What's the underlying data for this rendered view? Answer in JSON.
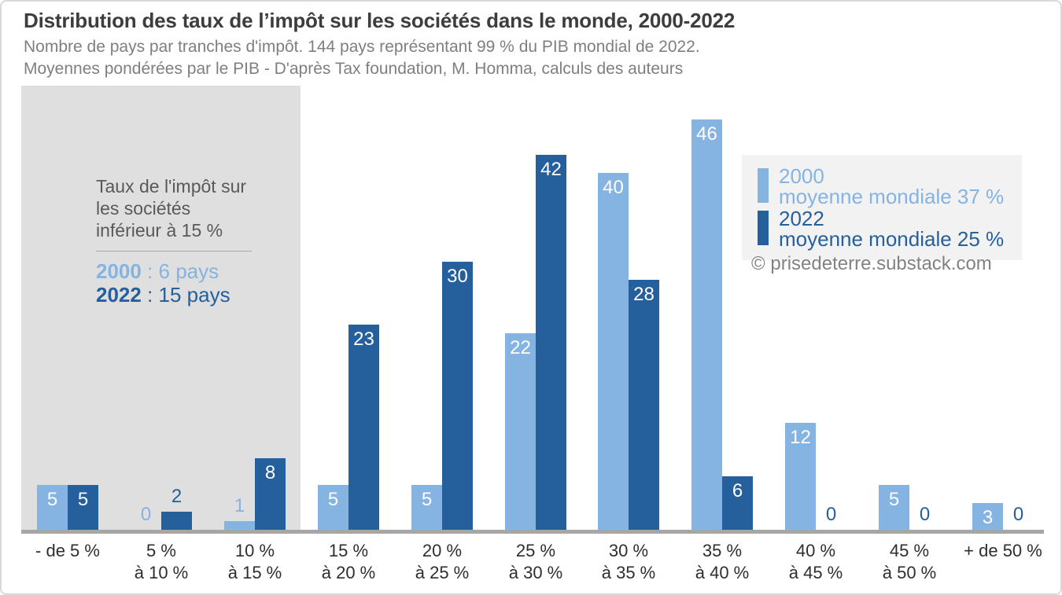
{
  "header": {
    "title": "Distribution des taux de l’impôt sur les sociétés dans le monde, 2000-2022",
    "subtitle1": "Nombre de pays par tranches d'impôt. 144 pays représentant 99 % du PIB mondial de 2022.",
    "subtitle2": "Moyennes pondérées par le PIB - D'après Tax foundation, M. Homma, calculs des auteurs"
  },
  "annotation": {
    "lines": [
      "Taux de l'impôt sur",
      "les sociétés",
      "inférieur à 15 %"
    ],
    "stats": [
      {
        "year": "2000",
        "rest": " : 6 pays"
      },
      {
        "year": "2022",
        "rest": " : 15 pays"
      }
    ]
  },
  "legend": {
    "position": "top-right",
    "entries": [
      {
        "year": "2000",
        "detail": "moyenne mondiale 37 %",
        "color": "#85b3e2"
      },
      {
        "year": "2022",
        "detail": "moyenne mondiale 25 %",
        "color": "#255f9c"
      }
    ]
  },
  "credit": "© prisedeterre.substack.com",
  "colors": {
    "series_2000": "#85b3e2",
    "series_2022": "#255f9c",
    "highlight_region": "#dfdfdf",
    "legend_background": "#f2f2f2",
    "axis_line": "#a6a6a6",
    "title_text": "#3d3d3d",
    "subtitle_text": "#7f7f7f",
    "annotation_text": "#595959",
    "value_label_inside": "#ffffff"
  },
  "chart_data": {
    "type": "bar",
    "title": "Distribution des taux de l’impôt sur les sociétés dans le monde, 2000-2022",
    "subtitle": "Nombre de pays par tranches d'impôt. 144 pays représentant 99 % du PIB mondial de 2022.",
    "source_note": "Moyennes pondérées par le PIB - D'après Tax foundation, M. Homma, calculs des auteurs",
    "categories": [
      "- de 5 %",
      "5 % à 10 %",
      "10 % à 15 %",
      "15 % à 20 %",
      "20 % à 25 %",
      "25 % à 30 %",
      "30 % à 35 %",
      "35 % à 40 %",
      "40 % à 45 %",
      "45 % à 50 %",
      "+ de 50 %"
    ],
    "category_lines": [
      [
        "- de 5 %",
        ""
      ],
      [
        "5 %",
        "à 10 %"
      ],
      [
        "10 %",
        "à 15 %"
      ],
      [
        "15 %",
        "à 20 %"
      ],
      [
        "20 %",
        "à 25 %"
      ],
      [
        "25 %",
        "à 30 %"
      ],
      [
        "30 %",
        "à 35 %"
      ],
      [
        "35 %",
        "à 40 %"
      ],
      [
        "40 %",
        "à 45 %"
      ],
      [
        "45 %",
        "à 50 %"
      ],
      [
        "+ de 50 %",
        ""
      ]
    ],
    "series": [
      {
        "name": "2000",
        "color": "#85b3e2",
        "values": [
          5,
          0,
          1,
          5,
          5,
          22,
          40,
          46,
          12,
          5,
          3
        ]
      },
      {
        "name": "2022",
        "color": "#255f9c",
        "values": [
          5,
          2,
          8,
          23,
          30,
          42,
          28,
          6,
          0,
          0,
          0
        ]
      }
    ],
    "xlabel": "",
    "ylabel": "",
    "ylim": [
      0,
      49
    ],
    "y_axis_visible": false,
    "grid": false,
    "data_labels": true,
    "legend_position": "top-right",
    "highlighted_categories_count": 3,
    "highlight_label": "Taux de l'impôt sur les sociétés inférieur à 15 % — 2000 : 6 pays, 2022 : 15 pays"
  }
}
